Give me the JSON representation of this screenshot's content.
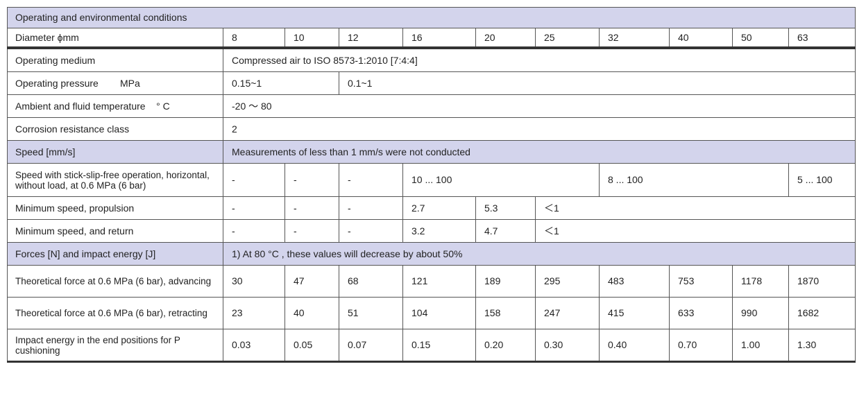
{
  "title": "Operating and environmental conditions",
  "diameter": {
    "label": "Diameter ϕmm",
    "values": [
      "8",
      "10",
      "12",
      "16",
      "20",
      "25",
      "32",
      "40",
      "50",
      "63"
    ]
  },
  "medium": {
    "label": "Operating medium",
    "value": "Compressed air to ISO 8573-1:2010 [7:4:4]"
  },
  "pressure": {
    "label": "Operating pressure        MPa",
    "small_bores": "0.15~1",
    "large_bores": "0.1~1"
  },
  "temperature": {
    "label": "Ambient and fluid temperature    ° C",
    "value": "-20 ～ 80"
  },
  "corrosion": {
    "label": "Corrosion resistance class",
    "value": "2"
  },
  "speed_section": {
    "label": "Speed [mm/s]",
    "note": "Measurements of less than 1 mm/s were not conducted"
  },
  "stick_slip": {
    "label": "Speed with stick-slip-free operation, horizontal, without load, at 0.6 MPa (6 bar)",
    "d8": "-",
    "d10": "-",
    "d12": "-",
    "d16_25": "10 ... 100",
    "d32_50": "8 ... 100",
    "d63": "5 ... 100"
  },
  "min_propulsion": {
    "label": "Minimum speed, propulsion",
    "d8": "-",
    "d10": "-",
    "d12": "-",
    "d16": "2.7",
    "d20": "5.3",
    "rest": "＜1"
  },
  "min_return": {
    "label": "Minimum speed, and return",
    "d8": "-",
    "d10": "-",
    "d12": "-",
    "d16": "3.2",
    "d20": "4.7",
    "rest": "＜1"
  },
  "forces_section": {
    "label": "Forces [N] and impact energy [J]",
    "note": "1) At 80 °C , these values will decrease by about 50%"
  },
  "force_adv": {
    "label": "Theoretical force at 0.6 MPa (6 bar), advancing",
    "values": [
      "30",
      "47",
      "68",
      "121",
      "189",
      "295",
      "483",
      "753",
      "1178",
      "1870"
    ]
  },
  "force_ret": {
    "label": "Theoretical force at 0.6 MPa (6 bar), retracting",
    "values": [
      "23",
      "40",
      "51",
      "104",
      "158",
      "247",
      "415",
      "633",
      "990",
      "1682"
    ]
  },
  "impact": {
    "label": "Impact energy in the end positions for P cushioning",
    "values": [
      "0.03",
      "0.05",
      "0.07",
      "0.15",
      "0.20",
      "0.30",
      "0.40",
      "0.70",
      "1.00",
      "1.30"
    ]
  },
  "colors": {
    "header_bg": "#d3d4ec",
    "border": "#555555",
    "thick_rule": "#333333"
  }
}
